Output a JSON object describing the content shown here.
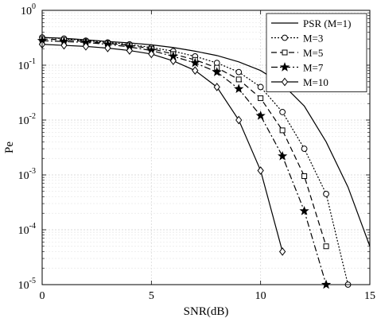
{
  "chart_data": {
    "type": "line",
    "title": "",
    "xlabel": "SNR(dB)",
    "ylabel": "Pe",
    "xlim": [
      0,
      15
    ],
    "ylim": [
      1e-05,
      1
    ],
    "yscale": "log",
    "grid": true,
    "legend_position": "top-right",
    "x_ticks": [
      {
        "value": 0,
        "label": "0"
      },
      {
        "value": 5,
        "label": "5"
      },
      {
        "value": 10,
        "label": "10"
      },
      {
        "value": 15,
        "label": "15"
      }
    ],
    "y_ticks": [
      {
        "exp": 0,
        "base": "10",
        "sup": "0"
      },
      {
        "exp": -1,
        "base": "10",
        "sup": "-1"
      },
      {
        "exp": -2,
        "base": "10",
        "sup": "-2"
      },
      {
        "exp": -3,
        "base": "10",
        "sup": "-3"
      },
      {
        "exp": -4,
        "base": "10",
        "sup": "-4"
      },
      {
        "exp": -5,
        "base": "10",
        "sup": "-5"
      }
    ],
    "series": [
      {
        "name": "PSR (M=1)",
        "dash": "none",
        "marker": "none",
        "x": [
          0,
          1,
          2,
          3,
          4,
          5,
          6,
          7,
          8,
          9,
          10,
          11,
          12,
          13,
          14,
          15
        ],
        "y": [
          0.32,
          0.31,
          0.29,
          0.27,
          0.255,
          0.235,
          0.21,
          0.18,
          0.15,
          0.115,
          0.08,
          0.045,
          0.018,
          0.004,
          0.0006,
          5e-05
        ]
      },
      {
        "name": "M=3",
        "dash": "2,2",
        "marker": "circle",
        "x": [
          0,
          1,
          2,
          3,
          4,
          5,
          6,
          7,
          8,
          9,
          10,
          11,
          12,
          13,
          14
        ],
        "y": [
          0.32,
          0.305,
          0.28,
          0.26,
          0.24,
          0.21,
          0.18,
          0.145,
          0.11,
          0.075,
          0.04,
          0.014,
          0.003,
          0.00045,
          1e-05
        ]
      },
      {
        "name": "M=5",
        "dash": "7,4",
        "marker": "square",
        "x": [
          0,
          1,
          2,
          3,
          4,
          5,
          6,
          7,
          8,
          9,
          10,
          11,
          12,
          13
        ],
        "y": [
          0.3,
          0.29,
          0.27,
          0.25,
          0.23,
          0.2,
          0.16,
          0.125,
          0.09,
          0.055,
          0.025,
          0.0065,
          0.00095,
          5e-05
        ]
      },
      {
        "name": "M=7",
        "dash": "8,3,2,3",
        "marker": "star",
        "x": [
          0,
          1,
          2,
          3,
          4,
          5,
          6,
          7,
          8,
          9,
          10,
          11,
          12,
          13
        ],
        "y": [
          0.28,
          0.27,
          0.26,
          0.24,
          0.215,
          0.185,
          0.145,
          0.11,
          0.075,
          0.037,
          0.012,
          0.0022,
          0.00022,
          1e-05
        ]
      },
      {
        "name": "M=10",
        "dash": "none",
        "marker": "diamond",
        "x": [
          0,
          1,
          2,
          3,
          4,
          5,
          6,
          7,
          8,
          9,
          10,
          11
        ],
        "y": [
          0.24,
          0.23,
          0.22,
          0.205,
          0.185,
          0.16,
          0.12,
          0.08,
          0.04,
          0.01,
          0.0012,
          4e-05
        ]
      }
    ]
  }
}
